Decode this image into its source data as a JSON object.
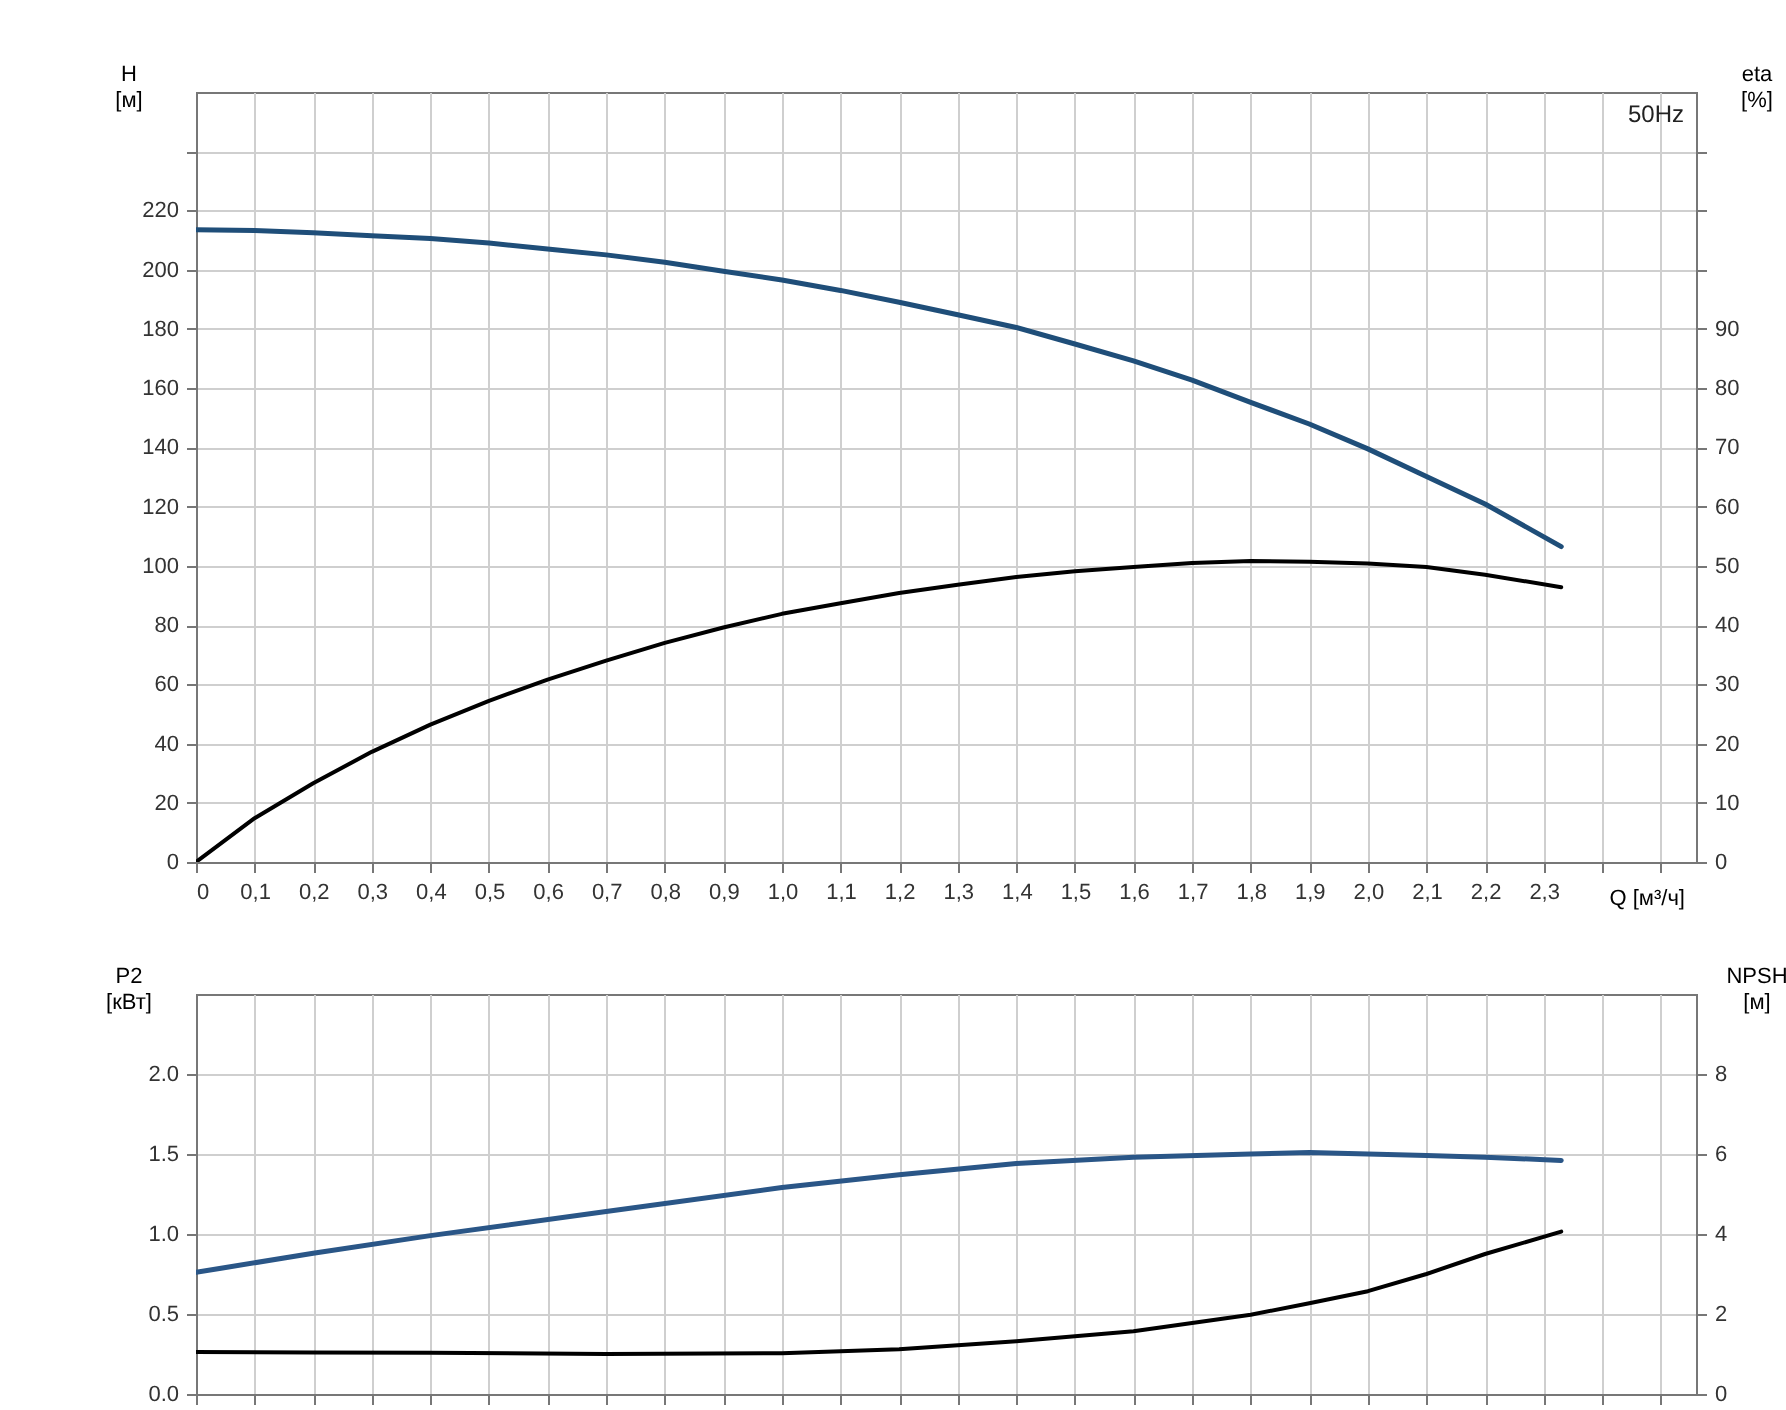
{
  "chart_data": [
    {
      "type": "line",
      "xlabel": "Q [м³/ч]",
      "ylabel": "H [м]",
      "y2label": "eta [%]",
      "annotations": [
        "50Hz"
      ],
      "grid": true,
      "x": [
        0,
        0.1,
        0.2,
        0.3,
        0.4,
        0.5,
        0.6,
        0.7,
        0.8,
        0.9,
        1.0,
        1.1,
        1.2,
        1.3,
        1.4,
        1.5,
        1.6,
        1.7,
        1.8,
        1.9,
        2.0,
        2.1,
        2.2,
        2.33
      ],
      "series": [
        {
          "color": "#1f4e79",
          "values": [
            213.5,
            213.2,
            212.5,
            211.5,
            210.5,
            209,
            207,
            205,
            202.5,
            199.5,
            196.5,
            193,
            189,
            184.8,
            180.5,
            174.9,
            169.2,
            162.7,
            155.2,
            147.9,
            139.5,
            130.2,
            120.9,
            106.5
          ]
        },
        {
          "color": "#000000",
          "axis": "y2",
          "values": [
            0,
            7.4,
            13.3,
            18.6,
            23.2,
            27.2,
            30.8,
            34.0,
            37.0,
            39.6,
            41.9,
            43.7,
            45.4,
            46.8,
            48.1,
            49.1,
            49.8,
            50.5,
            50.8,
            50.7,
            50.4,
            49.8,
            48.5,
            46.4
          ]
        }
      ],
      "xlim": [
        0,
        2.56
      ],
      "xticks": [
        0,
        {
          "value": 0.1,
          "label": "0,1"
        },
        {
          "value": 0.2,
          "label": "0,2"
        },
        {
          "value": 0.3,
          "label": "0,3"
        },
        {
          "value": 0.4,
          "label": "0,4"
        },
        {
          "value": 0.5,
          "label": "0,5"
        },
        {
          "value": 0.6,
          "label": "0,6"
        },
        {
          "value": 0.7,
          "label": "0,7"
        },
        {
          "value": 0.8,
          "label": "0,8"
        },
        {
          "value": 0.9,
          "label": "0,9"
        },
        {
          "value": 1,
          "label": "1,0"
        },
        {
          "value": 1.1,
          "label": "1,1"
        },
        {
          "value": 1.2,
          "label": "1,2"
        },
        {
          "value": 1.3,
          "label": "1,3"
        },
        {
          "value": 1.4,
          "label": "1,4"
        },
        {
          "value": 1.5,
          "label": "1,5"
        },
        {
          "value": 1.6,
          "label": "1,6"
        },
        {
          "value": 1.7,
          "label": "1,7"
        },
        {
          "value": 1.8,
          "label": "1,8"
        },
        {
          "value": 1.9,
          "label": "1,9"
        },
        {
          "value": 2,
          "label": "2,0"
        },
        {
          "value": 2.1,
          "label": "2,1"
        },
        {
          "value": 2.2,
          "label": "2,2"
        },
        {
          "value": 2.3,
          "label": "2,3"
        },
        {
          "value": 2.4,
          "label": null
        },
        {
          "value": 2.5,
          "label": null
        }
      ],
      "ylim": [
        0,
        260
      ],
      "yticks": [
        0,
        20,
        40,
        60,
        80,
        100,
        120,
        140,
        160,
        180,
        200,
        220,
        {
          "value": 240,
          "label": null
        }
      ],
      "y2lim": [
        0,
        130
      ],
      "y2ticks": [
        0,
        10,
        20,
        30,
        40,
        50,
        60,
        70,
        80,
        90,
        {
          "value": 100,
          "label": null
        },
        {
          "value": 110,
          "label": null
        },
        {
          "value": 120,
          "label": null
        }
      ]
    },
    {
      "type": "line",
      "ylabel": "P2 [кВт]",
      "y2label": "NPSH [м]",
      "grid": true,
      "tick_labels": "y",
      "x": [
        0,
        0.2,
        0.4,
        0.7,
        1.0,
        1.2,
        1.4,
        1.6,
        1.8,
        1.9,
        2.0,
        2.1,
        2.2,
        2.33
      ],
      "xticks": [
        {
          "value": 0,
          "label": null
        },
        {
          "value": 0.1,
          "label": null
        },
        {
          "value": 0.2,
          "label": null
        },
        {
          "value": 0.3,
          "label": null
        },
        {
          "value": 0.4,
          "label": null
        },
        {
          "value": 0.5,
          "label": null
        },
        {
          "value": 0.6,
          "label": null
        },
        {
          "value": 0.7,
          "label": null
        },
        {
          "value": 0.8,
          "label": null
        },
        {
          "value": 0.9,
          "label": null
        },
        {
          "value": 1,
          "label": null
        },
        {
          "value": 1.1,
          "label": null
        },
        {
          "value": 1.2,
          "label": null
        },
        {
          "value": 1.3,
          "label": null
        },
        {
          "value": 1.4,
          "label": null
        },
        {
          "value": 1.5,
          "label": null
        },
        {
          "value": 1.6,
          "label": null
        },
        {
          "value": 1.7,
          "label": null
        },
        {
          "value": 1.8,
          "label": null
        },
        {
          "value": 1.9,
          "label": null
        },
        {
          "value": 2,
          "label": null
        },
        {
          "value": 2.1,
          "label": null
        },
        {
          "value": 2.2,
          "label": null
        },
        {
          "value": 2.3,
          "label": null
        },
        {
          "value": 2.4,
          "label": null
        },
        {
          "value": 2.5,
          "label": null
        }
      ],
      "series": [
        {
          "color": "#2a5687",
          "values": [
            0.76,
            0.88,
            0.99,
            1.14,
            1.29,
            1.37,
            1.44,
            1.48,
            1.5,
            1.51,
            1.5,
            1.49,
            1.48,
            1.46
          ]
        },
        {
          "color": "#000000",
          "axis": "y2",
          "values": [
            1.05,
            1.04,
            1.03,
            1.0,
            1.02,
            1.12,
            1.32,
            1.57,
            1.98,
            2.27,
            2.57,
            3.0,
            3.5,
            4.06
          ]
        }
      ],
      "xlim": [
        0,
        2.56
      ],
      "ylim": [
        0,
        2.5
      ],
      "yticks": [
        {
          "value": 0,
          "label": "0.0"
        },
        0.5,
        {
          "value": 1,
          "label": "1.0"
        },
        1.5,
        {
          "value": 2,
          "label": "2.0"
        }
      ],
      "y2lim": [
        0,
        10
      ],
      "y2ticks": [
        0,
        2,
        4,
        6,
        8
      ]
    }
  ]
}
